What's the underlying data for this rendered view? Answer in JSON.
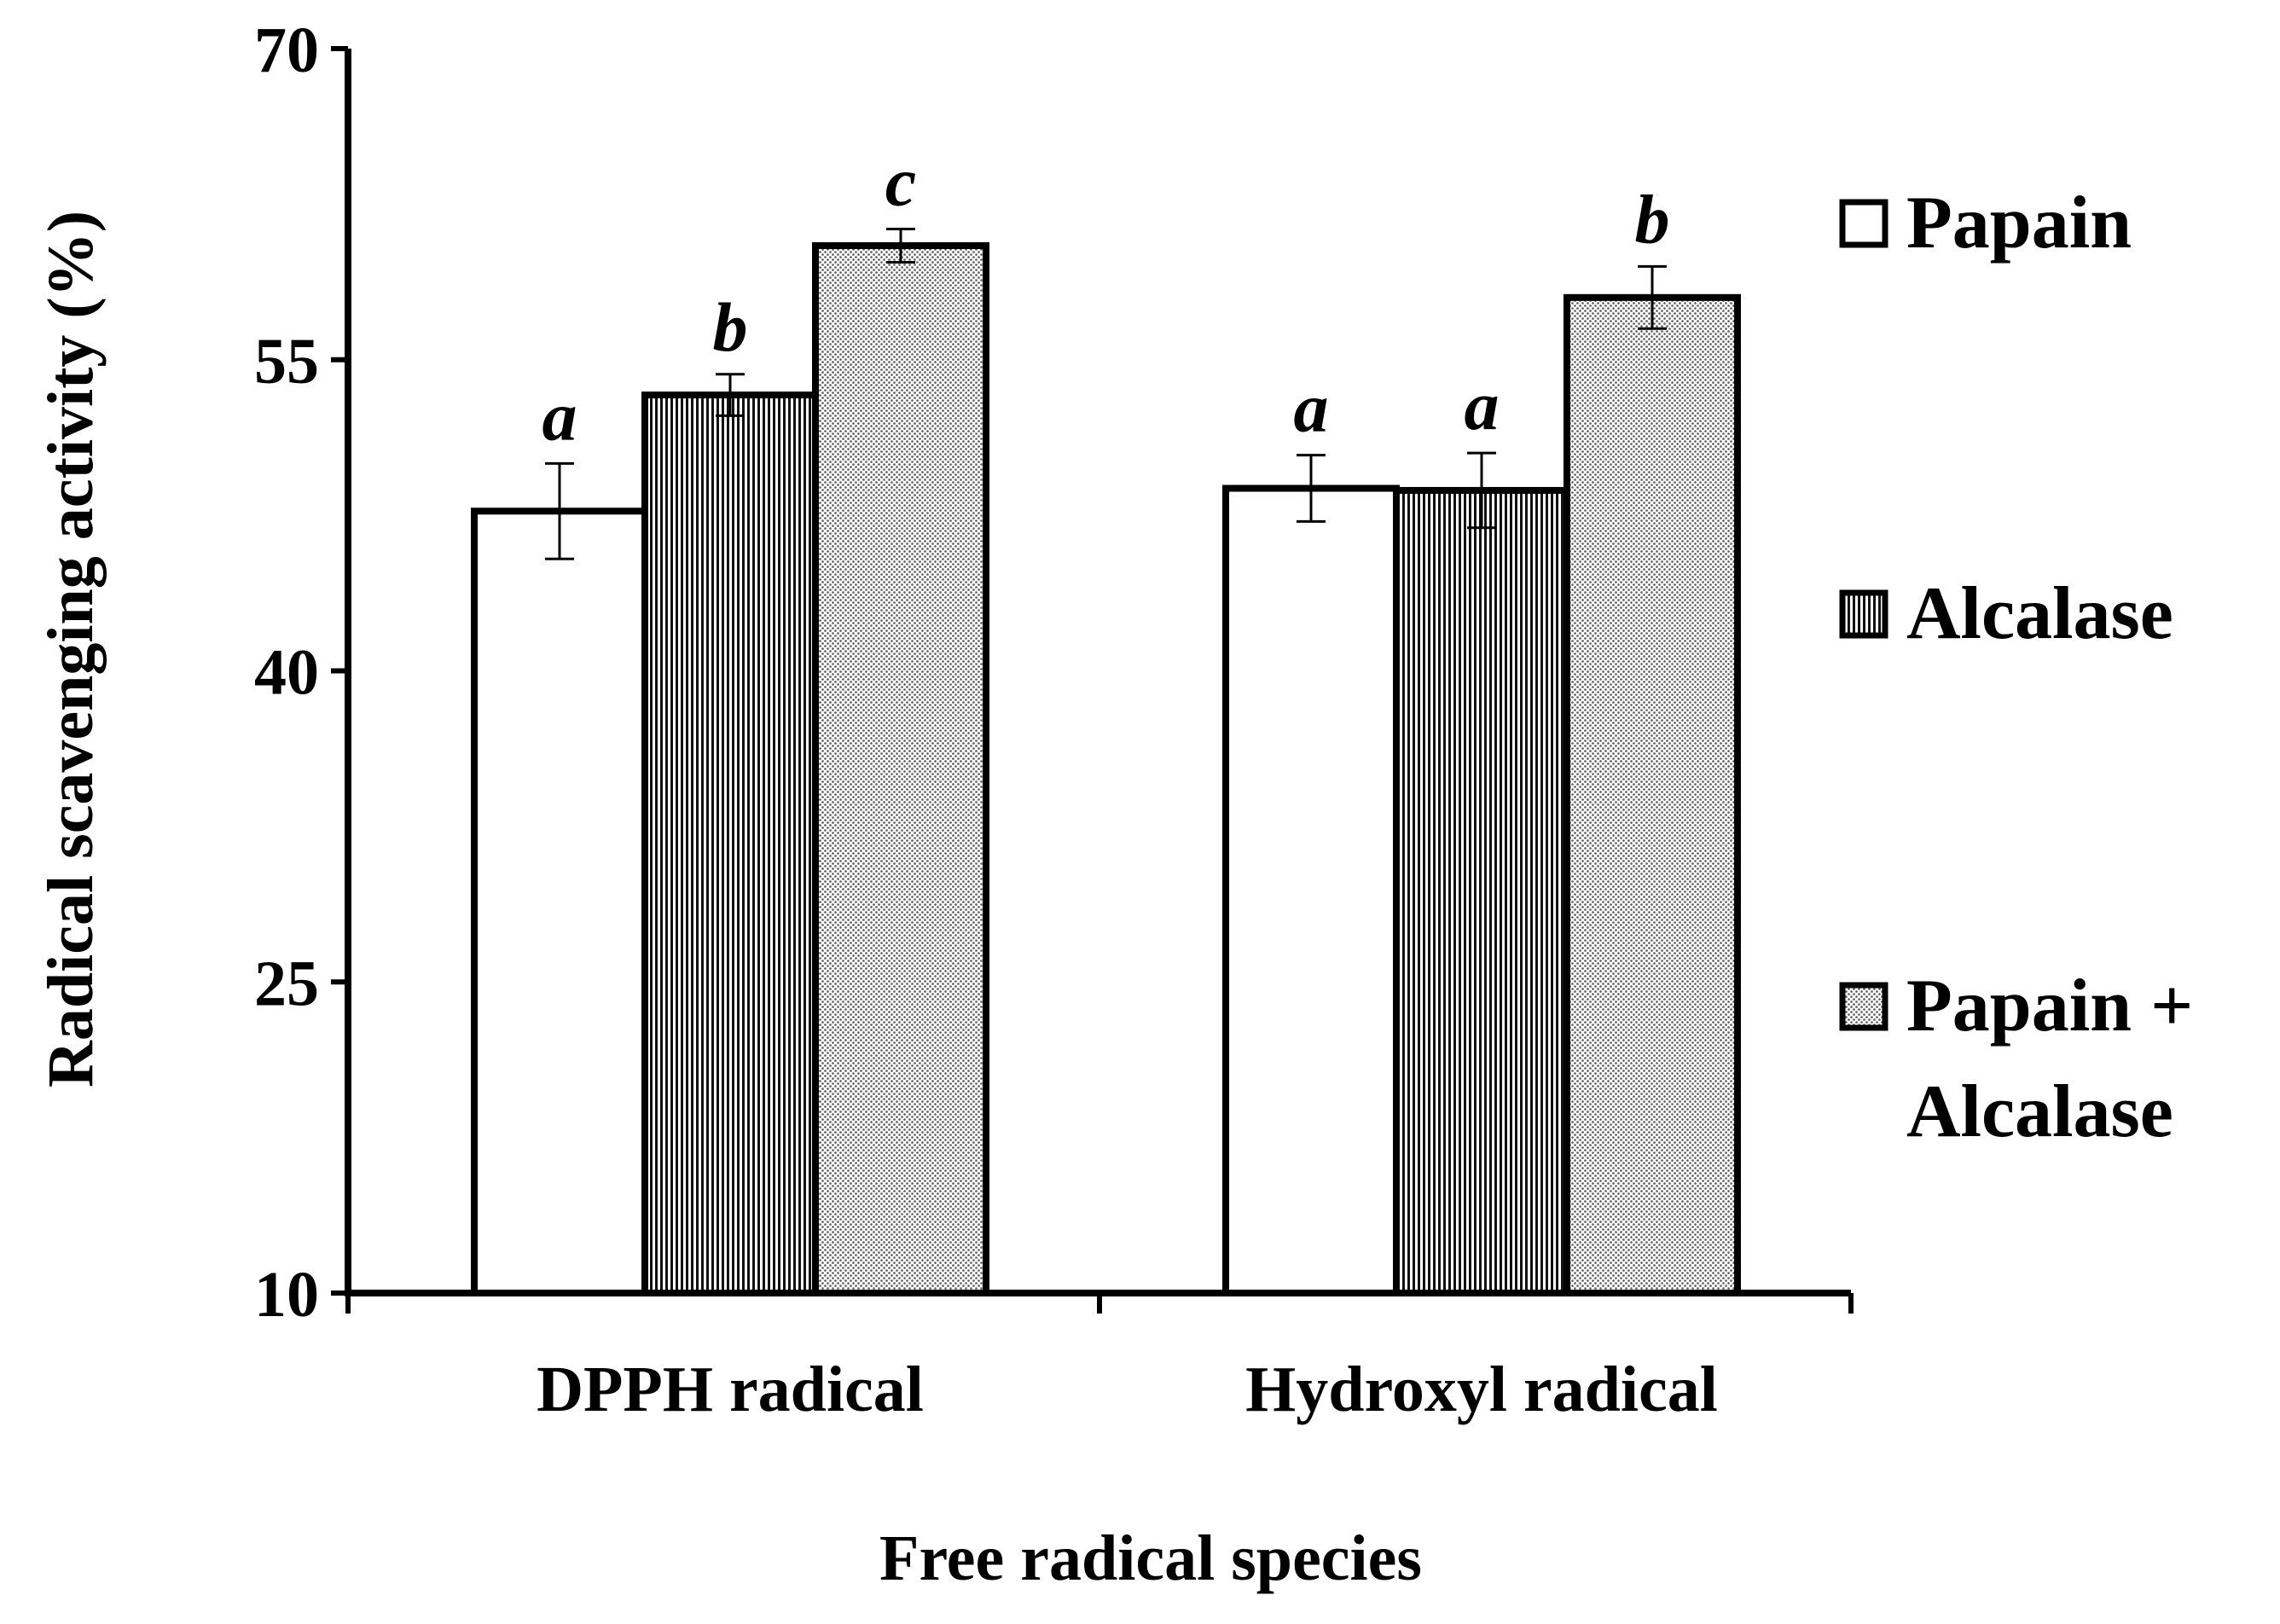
{
  "chart_data": {
    "type": "bar",
    "title": "",
    "xlabel": "Free radical species",
    "ylabel": "Radical scavenging activity (%)",
    "ylim": [
      10,
      70
    ],
    "yticks": [
      10,
      25,
      40,
      55,
      70
    ],
    "grid": false,
    "legend_position": "right",
    "categories": [
      "DPPH radical",
      "Hydroxyl radical"
    ],
    "series": [
      {
        "name": "Papain",
        "legend_lines": [
          "Papain"
        ],
        "pattern": "white",
        "values": [
          47.7,
          48.8
        ],
        "errors": [
          2.3,
          1.6
        ],
        "labels": [
          "a",
          "a"
        ]
      },
      {
        "name": "Alcalase",
        "legend_lines": [
          "Alcalase"
        ],
        "pattern": "vertical",
        "values": [
          53.3,
          48.7
        ],
        "errors": [
          1.0,
          1.8
        ],
        "labels": [
          "b",
          "a"
        ]
      },
      {
        "name": "Papain + Alcalase",
        "legend_lines": [
          "Papain +",
          "Alcalase"
        ],
        "pattern": "dots",
        "values": [
          60.5,
          58.0
        ],
        "errors": [
          0.8,
          1.5
        ],
        "labels": [
          "c",
          "b"
        ]
      }
    ]
  }
}
